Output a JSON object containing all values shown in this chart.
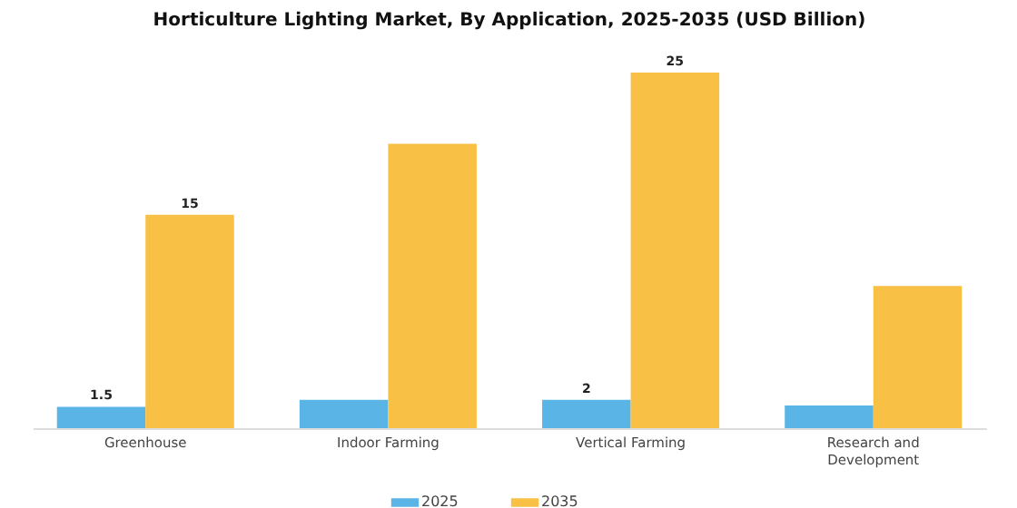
{
  "chart_data": {
    "type": "bar",
    "title": "Horticulture Lighting Market, By Application, 2025-2035 (USD Billion)",
    "categories": [
      "Greenhouse",
      "Indoor Farming",
      "Vertical Farming",
      "Research and Development"
    ],
    "series": [
      {
        "name": "2025",
        "color": "#5ab4e5",
        "values": [
          1.5,
          2.0,
          2.0,
          1.6
        ],
        "value_labels": [
          "1.5",
          null,
          "2",
          null
        ]
      },
      {
        "name": "2035",
        "color": "#f8c146",
        "values": [
          15,
          20,
          25,
          10
        ],
        "value_labels": [
          "15",
          null,
          "25",
          null
        ]
      }
    ],
    "tick_labels": "x",
    "legend": "bottom"
  }
}
